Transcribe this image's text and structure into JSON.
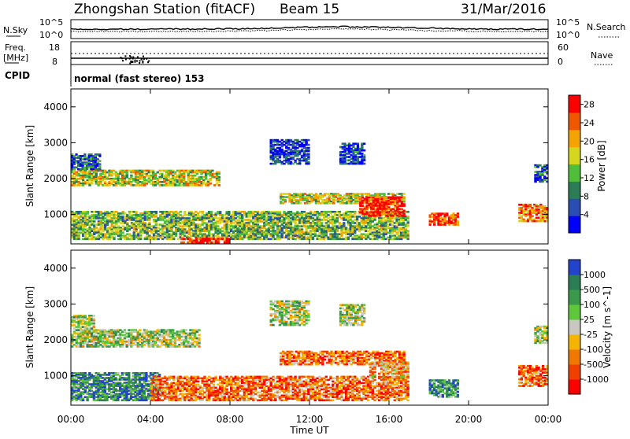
{
  "header": {
    "title": "Zhongshan Station (fitACF)",
    "beam": "Beam 15",
    "date": "31/Mar/2016"
  },
  "noise_panel": {
    "left_label": "N.Sky",
    "right_label": "N.Search",
    "left_ticks": [
      "10^5",
      "10^0"
    ],
    "right_ticks": [
      "10^5",
      "10^0"
    ]
  },
  "freq_panel": {
    "left_label_line1": "Freq.",
    "left_label_line2": "[MHz]",
    "right_label": "Nave",
    "left_ticks": [
      "18",
      "8"
    ],
    "right_ticks": [
      "60",
      "0"
    ]
  },
  "cpid": {
    "label": "CPID",
    "value": "normal (fast stereo) 153"
  },
  "chart_data": [
    {
      "type": "heatmap",
      "name": "Power",
      "ylabel": "Slant Range [km]",
      "xlabel": "Time UT",
      "y_ticks": [
        "1000",
        "2000",
        "3000",
        "4000"
      ],
      "ylim": [
        180,
        4500
      ],
      "x_ticks": [
        "00:00",
        "04:00",
        "08:00",
        "12:00",
        "16:00",
        "20:00",
        "00:00"
      ],
      "xlim_hours": [
        0,
        24
      ],
      "colorbar": {
        "label": "Power [dB]",
        "tick_labels": [
          "4",
          "8",
          "12",
          "16",
          "20",
          "24",
          "28"
        ],
        "range": [
          0,
          30
        ],
        "colors": [
          "#0000ff",
          "#2a4db5",
          "#2a7d55",
          "#4fbf3a",
          "#d4d71e",
          "#f5a300",
          "#f05800",
          "#ff0000"
        ]
      },
      "regions": [
        {
          "t": [
            0.0,
            17.0
          ],
          "r": [
            300,
            1100
          ],
          "level": 0.45
        },
        {
          "t": [
            0.0,
            7.5
          ],
          "r": [
            1800,
            2250
          ],
          "level": 0.55
        },
        {
          "t": [
            0.0,
            1.5
          ],
          "r": [
            2250,
            2700
          ],
          "level": 0.25
        },
        {
          "t": [
            5.5,
            8.0
          ],
          "r": [
            200,
            350
          ],
          "level": 0.95
        },
        {
          "t": [
            10.0,
            12.0
          ],
          "r": [
            2400,
            3100
          ],
          "level": 0.15
        },
        {
          "t": [
            13.5,
            14.8
          ],
          "r": [
            2400,
            3000
          ],
          "level": 0.15
        },
        {
          "t": [
            10.5,
            16.8
          ],
          "r": [
            1300,
            1600
          ],
          "level": 0.55
        },
        {
          "t": [
            14.5,
            16.8
          ],
          "r": [
            950,
            1500
          ],
          "level": 0.9
        },
        {
          "t": [
            18.0,
            19.5
          ],
          "r": [
            700,
            1050
          ],
          "level": 0.9
        },
        {
          "t": [
            22.5,
            24.0
          ],
          "r": [
            800,
            1300
          ],
          "level": 0.75
        },
        {
          "t": [
            23.3,
            24.0
          ],
          "r": [
            1900,
            2400
          ],
          "level": 0.2
        }
      ]
    },
    {
      "type": "heatmap",
      "name": "Velocity",
      "ylabel": "Slant Range [km]",
      "xlabel": "Time UT",
      "y_ticks": [
        "1000",
        "2000",
        "3000",
        "4000"
      ],
      "ylim": [
        180,
        4500
      ],
      "x_ticks": [
        "00:00",
        "04:00",
        "08:00",
        "12:00",
        "16:00",
        "20:00",
        "00:00"
      ],
      "xlim_hours": [
        0,
        24
      ],
      "colorbar": {
        "label": "Velocity [m s^-1]",
        "tick_labels": [
          "1000",
          "500",
          "100",
          "25",
          "-25",
          "-100",
          "-500",
          "-1000"
        ],
        "colors": [
          "#2244cc",
          "#2a7d55",
          "#3a9a4a",
          "#5cc83a",
          "#c8c8c0",
          "#f5b400",
          "#f07800",
          "#f04000",
          "#ff0000"
        ]
      },
      "regions": [
        {
          "t": [
            0.0,
            4.5
          ],
          "r": [
            300,
            1100
          ],
          "level": 0.2
        },
        {
          "t": [
            0.0,
            6.5
          ],
          "r": [
            1800,
            2300
          ],
          "level": 0.45
        },
        {
          "t": [
            0.0,
            1.2
          ],
          "r": [
            2300,
            2700
          ],
          "level": 0.45
        },
        {
          "t": [
            4.0,
            17.0
          ],
          "r": [
            300,
            1000
          ],
          "level": 0.75
        },
        {
          "t": [
            10.5,
            16.8
          ],
          "r": [
            1300,
            1700
          ],
          "level": 0.75
        },
        {
          "t": [
            10.0,
            12.0
          ],
          "r": [
            2400,
            3100
          ],
          "level": 0.45
        },
        {
          "t": [
            13.5,
            14.8
          ],
          "r": [
            2400,
            3000
          ],
          "level": 0.45
        },
        {
          "t": [
            15.0,
            17.0
          ],
          "r": [
            950,
            1400
          ],
          "level": 0.65
        },
        {
          "t": [
            18.0,
            19.5
          ],
          "r": [
            400,
            900
          ],
          "level": 0.25
        },
        {
          "t": [
            22.5,
            24.0
          ],
          "r": [
            700,
            1300
          ],
          "level": 0.8
        },
        {
          "t": [
            23.3,
            24.0
          ],
          "r": [
            1900,
            2400
          ],
          "level": 0.45
        }
      ]
    }
  ]
}
